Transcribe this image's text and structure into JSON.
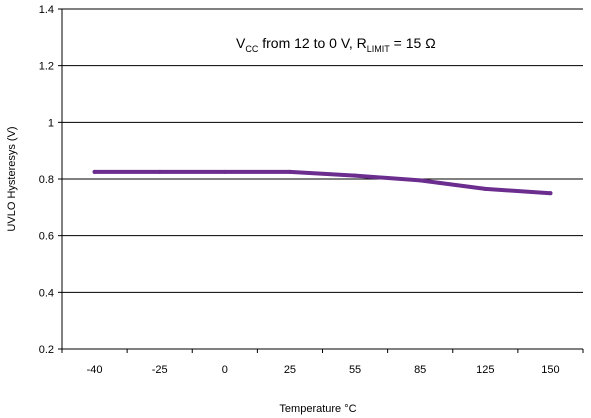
{
  "chart_data": {
    "type": "line",
    "annotation": {
      "v": "V",
      "cc": "CC",
      "mid": " from 12 to 0 V, R",
      "limit": "LIMIT",
      "end": " = 15 Ω"
    },
    "xlabel": "Temperature °C",
    "ylabel": "UVLO Hysteresys (V)",
    "categories": [
      "-40",
      "-25",
      "0",
      "25",
      "55",
      "85",
      "125",
      "150"
    ],
    "ylim": [
      0.2,
      1.4
    ],
    "yticks": [
      "0.2",
      "0.4",
      "0.6",
      "0.8",
      "1",
      "1.2",
      "1.4"
    ],
    "grid": true,
    "series": [
      {
        "values": [
          0.825,
          0.825,
          0.825,
          0.825,
          0.812,
          0.795,
          0.765,
          0.75
        ],
        "color": "#6b2d8e"
      }
    ]
  }
}
